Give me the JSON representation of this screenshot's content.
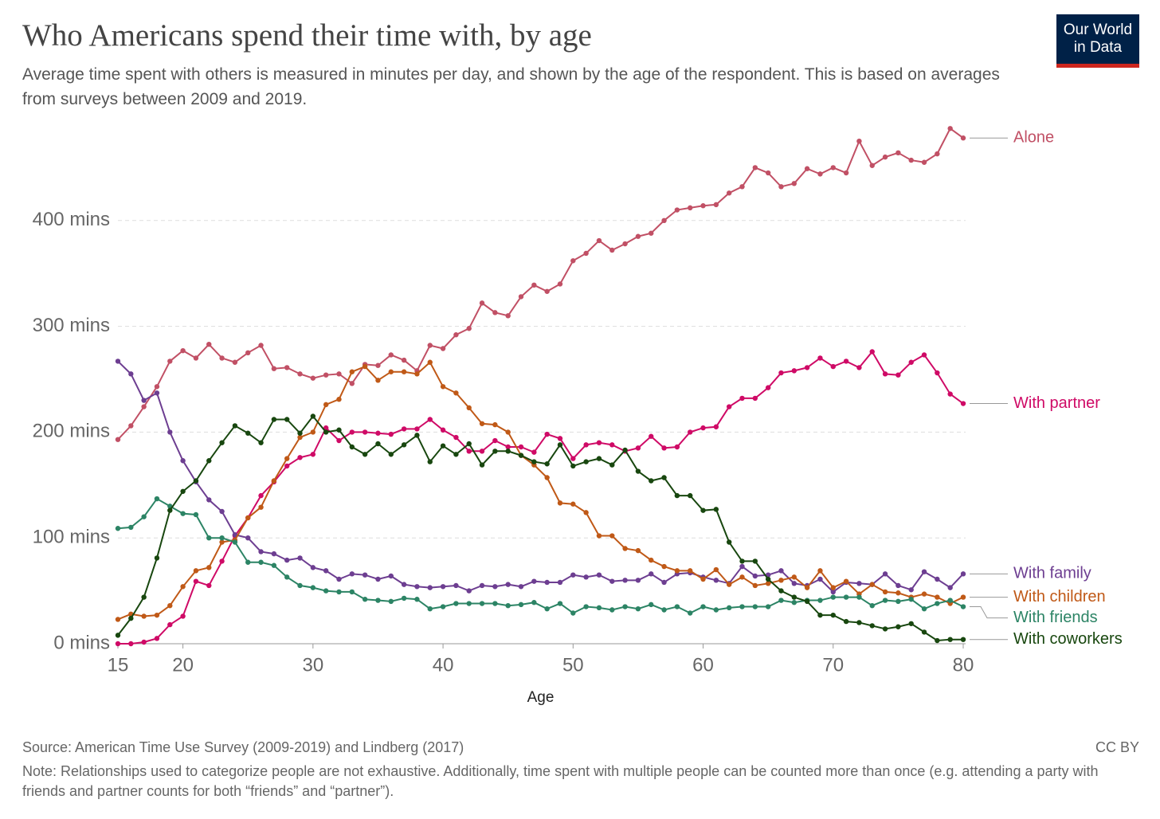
{
  "chart_data": {
    "type": "line",
    "title": "Who Americans spend their time with, by age",
    "subtitle": "Average time spent with others is measured in minutes per day, and shown by the age of the respondent. This is based on averages from surveys between 2009 and 2019.",
    "x_label": "Age",
    "logo": "Our World in Data",
    "source": "Source: American Time Use Survey (2009-2019) and Lindberg (2017)",
    "license": "CC BY",
    "note": "Note: Relationships used to categorize people are not exhaustive. Additionally, time spent with multiple people can be counted more than once (e.g. attending a party with friends and partner counts for both “friends” and “partner”).",
    "x": [
      15,
      16,
      17,
      18,
      19,
      20,
      21,
      22,
      23,
      24,
      25,
      26,
      27,
      28,
      29,
      30,
      31,
      32,
      33,
      34,
      35,
      36,
      37,
      38,
      39,
      40,
      41,
      42,
      43,
      44,
      45,
      46,
      47,
      48,
      49,
      50,
      51,
      52,
      53,
      54,
      55,
      56,
      57,
      58,
      59,
      60,
      61,
      62,
      63,
      64,
      65,
      66,
      67,
      68,
      69,
      70,
      71,
      72,
      73,
      74,
      75,
      76,
      77,
      78,
      79,
      80
    ],
    "xlim": [
      15,
      80
    ],
    "xticks": [
      15,
      20,
      30,
      40,
      50,
      60,
      70,
      80
    ],
    "ylim": [
      0,
      500
    ],
    "yticks": [
      {
        "value": 0,
        "label": "0 mins"
      },
      {
        "value": 100,
        "label": "100 mins"
      },
      {
        "value": 200,
        "label": "200 mins"
      },
      {
        "value": 300,
        "label": "300 mins"
      },
      {
        "value": 400,
        "label": "400 mins"
      }
    ],
    "grid": true,
    "series": [
      {
        "name": "Alone",
        "color": "#c15065",
        "values": [
          193,
          206,
          224,
          243,
          267,
          277,
          270,
          283,
          270,
          266,
          275,
          282,
          260,
          261,
          255,
          251,
          254,
          255,
          246,
          264,
          263,
          273,
          268,
          258,
          282,
          279,
          292,
          298,
          322,
          313,
          310,
          328,
          339,
          333,
          340,
          362,
          369,
          381,
          372,
          378,
          385,
          388,
          400,
          410,
          412,
          414,
          415,
          426,
          432,
          450,
          445,
          432,
          435,
          449,
          444,
          450,
          445,
          475,
          452,
          460,
          464,
          457,
          455,
          463,
          487,
          478
        ]
      },
      {
        "name": "With partner",
        "color": "#cf0a66",
        "values": [
          0,
          0,
          1.5,
          5,
          18,
          26,
          59,
          55,
          78,
          102,
          119,
          140,
          153,
          168,
          176,
          179,
          204,
          192,
          200,
          200,
          199,
          198,
          203,
          203,
          212,
          202,
          195,
          182,
          182,
          192,
          186,
          186,
          181,
          198,
          194,
          175,
          188,
          190,
          188,
          182,
          185,
          196,
          185,
          186,
          200,
          204,
          205,
          224,
          232,
          232,
          242,
          256,
          258,
          261,
          270,
          262,
          267,
          261,
          276,
          255,
          254,
          266,
          273,
          256,
          236,
          227
        ]
      },
      {
        "name": "With family",
        "color": "#6d3e91",
        "values": [
          267,
          255,
          230,
          237,
          200,
          173,
          153,
          136,
          125,
          103,
          100,
          87,
          85,
          79,
          81,
          72,
          69,
          61,
          66,
          65,
          61,
          64,
          56,
          54,
          53,
          54,
          55,
          50,
          55,
          54,
          56,
          54,
          59,
          58,
          58,
          65,
          63,
          65,
          59,
          60,
          60,
          66,
          58,
          66,
          67,
          63,
          60,
          57,
          73,
          64,
          65,
          69,
          57,
          55,
          61,
          49,
          58,
          57,
          56,
          66,
          55,
          51,
          68,
          61,
          53,
          66
        ]
      },
      {
        "name": "With children",
        "color": "#c05917",
        "values": [
          23,
          28,
          26,
          27,
          36,
          54,
          69,
          72,
          96,
          98,
          119,
          129,
          154,
          175,
          195,
          200,
          226,
          231,
          257,
          262,
          249,
          257,
          257,
          255,
          266,
          243,
          237,
          223,
          208,
          207,
          200,
          178,
          169,
          157,
          133,
          132,
          124,
          102,
          102,
          90,
          88,
          79,
          73,
          69,
          69,
          61,
          70,
          56,
          63,
          55,
          57,
          60,
          63,
          53,
          69,
          53,
          59,
          47,
          56,
          49,
          48,
          44,
          47,
          44,
          38,
          44
        ]
      },
      {
        "name": "With friends",
        "color": "#2c8465",
        "values": [
          109,
          110,
          120,
          137,
          130,
          123,
          122,
          100,
          100,
          96,
          77,
          77,
          74,
          63,
          55,
          53,
          50,
          49,
          49,
          42,
          41,
          40,
          43,
          42,
          33,
          35,
          38,
          38,
          38,
          38,
          36,
          37,
          39,
          33,
          38,
          29,
          35,
          34,
          32,
          35,
          33,
          37,
          32,
          35,
          29,
          35,
          32,
          34,
          35,
          35,
          35,
          41,
          39,
          41,
          41,
          44,
          44,
          44,
          36,
          41,
          40,
          42,
          33,
          38,
          41,
          35
        ]
      },
      {
        "name": "With coworkers",
        "color": "#18470f",
        "values": [
          8,
          24,
          44,
          81,
          126,
          144,
          154,
          173,
          190,
          206,
          199,
          190,
          212,
          212,
          199,
          215,
          200,
          202,
          186,
          179,
          189,
          179,
          188,
          197,
          172,
          187,
          179,
          189,
          169,
          182,
          182,
          178,
          172,
          170,
          188,
          168,
          172,
          175,
          169,
          183,
          163,
          154,
          157,
          140,
          140,
          126,
          127,
          96,
          78,
          78,
          61,
          50,
          44,
          40,
          27,
          27,
          21,
          20,
          17,
          14,
          16,
          19,
          11,
          3,
          4,
          4
        ]
      }
    ]
  }
}
